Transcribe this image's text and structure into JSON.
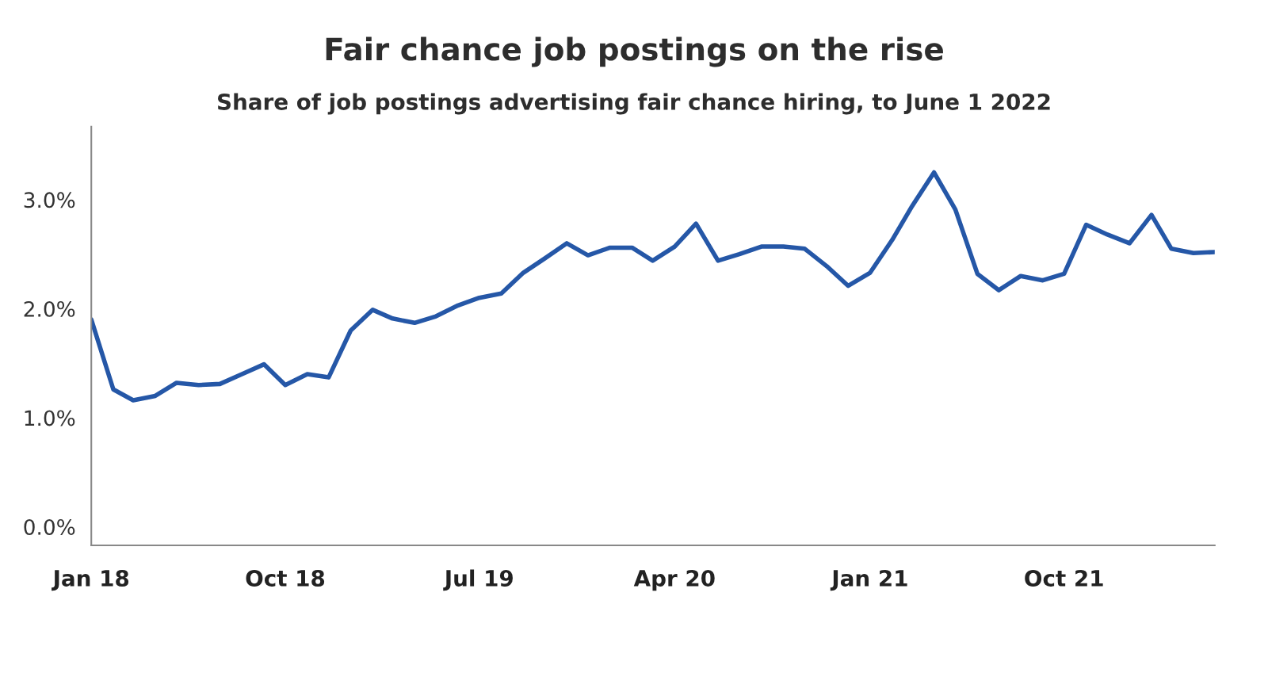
{
  "chart_data": {
    "type": "line",
    "title": "Fair chance job postings on the rise",
    "subtitle": "Share of job postings advertising fair chance hiring, to June 1 2022",
    "x": [
      "2018-01",
      "2018-02",
      "2018-03",
      "2018-04",
      "2018-05",
      "2018-06",
      "2018-07",
      "2018-08",
      "2018-09",
      "2018-10",
      "2018-11",
      "2018-12",
      "2019-01",
      "2019-02",
      "2019-03",
      "2019-04",
      "2019-05",
      "2019-06",
      "2019-07",
      "2019-08",
      "2019-09",
      "2019-10",
      "2019-11",
      "2019-12",
      "2020-01",
      "2020-02",
      "2020-03",
      "2020-04",
      "2020-05",
      "2020-06",
      "2020-07",
      "2020-08",
      "2020-09",
      "2020-10",
      "2020-11",
      "2020-12",
      "2021-01",
      "2021-02",
      "2021-03",
      "2021-04",
      "2021-05",
      "2021-06",
      "2021-07",
      "2021-08",
      "2021-09",
      "2021-10",
      "2021-11",
      "2021-12",
      "2022-01",
      "2022-02",
      "2022-03",
      "2022-04",
      "2022-05"
    ],
    "series": [
      {
        "color": "#2557a7",
        "values": [
          1.9,
          1.26,
          1.16,
          1.2,
          1.32,
          1.3,
          1.31,
          1.4,
          1.49,
          1.3,
          1.4,
          1.37,
          1.8,
          1.99,
          1.91,
          1.87,
          1.93,
          2.03,
          2.1,
          2.14,
          2.33,
          2.46,
          2.6,
          2.49,
          2.56,
          2.56,
          2.44,
          2.57,
          2.78,
          2.44,
          2.5,
          2.57,
          2.57,
          2.55,
          2.39,
          2.21,
          2.33,
          2.63,
          2.94,
          3.25,
          2.91,
          2.32,
          2.17,
          2.3,
          2.26,
          2.32,
          2.77,
          2.68,
          2.6,
          2.86,
          2.55,
          2.51,
          2.52
        ]
      }
    ],
    "xlim": [
      "2018-01",
      "2022-05"
    ],
    "xticks": [
      {
        "value": "2018-01",
        "label": "Jan 18"
      },
      {
        "value": "2018-10",
        "label": "Oct 18"
      },
      {
        "value": "2019-07",
        "label": "Jul 19"
      },
      {
        "value": "2020-04",
        "label": "Apr 20"
      },
      {
        "value": "2021-01",
        "label": "Jan 21"
      },
      {
        "value": "2021-10",
        "label": "Oct 21"
      }
    ],
    "ylim": [
      -0.17,
      3.67
    ],
    "yticks": [
      {
        "value": 0,
        "label": "0.0%"
      },
      {
        "value": 1,
        "label": "1.0%"
      },
      {
        "value": 2,
        "label": "2.0%"
      },
      {
        "value": 3,
        "label": "3.0%"
      }
    ],
    "grid": false,
    "legend": false,
    "line_style": "solid",
    "marker": "none"
  }
}
